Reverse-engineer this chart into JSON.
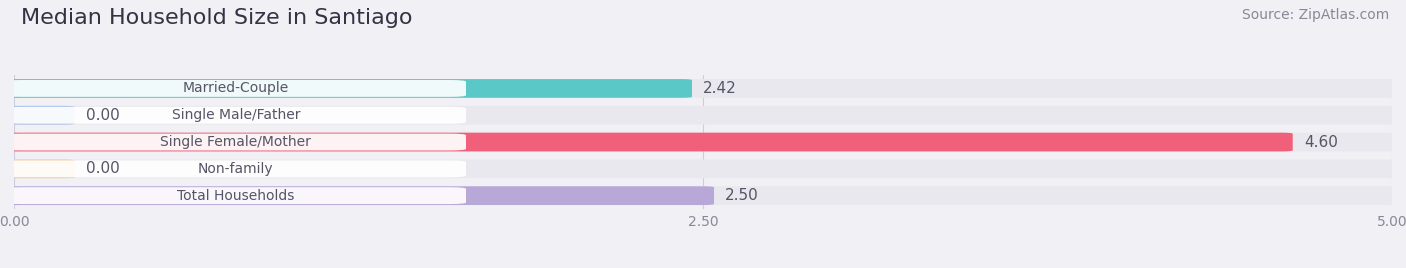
{
  "title": "Median Household Size in Santiago",
  "source": "Source: ZipAtlas.com",
  "categories": [
    "Married-Couple",
    "Single Male/Father",
    "Single Female/Mother",
    "Non-family",
    "Total Households"
  ],
  "values": [
    2.42,
    0.0,
    4.6,
    0.0,
    2.5
  ],
  "bar_colors": [
    "#5bc8c8",
    "#a8c0e8",
    "#f0607a",
    "#f5c89a",
    "#b8a8d8"
  ],
  "xlim": [
    0,
    5.0
  ],
  "xticks": [
    0.0,
    2.5,
    5.0
  ],
  "xtick_labels": [
    "0.00",
    "2.50",
    "5.00"
  ],
  "bg_color": "#f0f0f5",
  "title_fontsize": 16,
  "source_fontsize": 10,
  "bar_height": 0.62,
  "value_fontsize": 11,
  "label_fontsize": 10,
  "zero_bar_width": 0.18
}
